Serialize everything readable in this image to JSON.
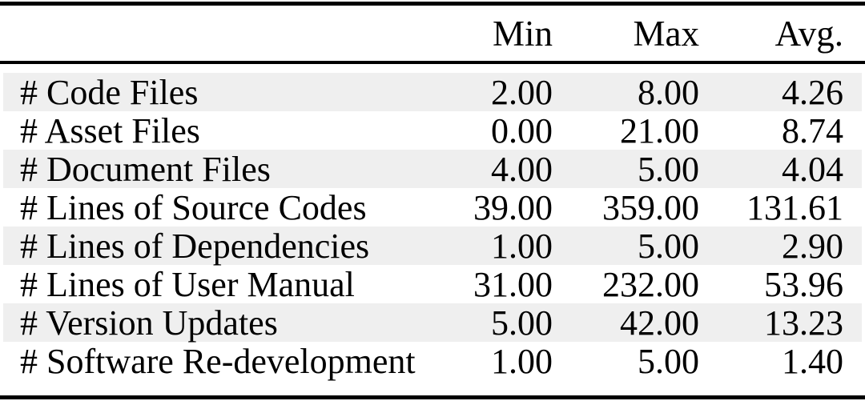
{
  "table": {
    "header": {
      "label": "",
      "min": "Min",
      "max": "Max",
      "avg": "Avg."
    },
    "rows": [
      {
        "label": "# Code Files",
        "min": "2.00",
        "max": "8.00",
        "avg": "4.26"
      },
      {
        "label": "# Asset Files",
        "min": "0.00",
        "max": "21.00",
        "avg": "8.74"
      },
      {
        "label": "# Document Files",
        "min": "4.00",
        "max": "5.00",
        "avg": "4.04"
      },
      {
        "label": "# Lines of Source Codes",
        "min": "39.00",
        "max": "359.00",
        "avg": "131.61"
      },
      {
        "label": "# Lines of Dependencies",
        "min": "1.00",
        "max": "5.00",
        "avg": "2.90"
      },
      {
        "label": "# Lines of User Manual",
        "min": "31.00",
        "max": "232.00",
        "avg": "53.96"
      },
      {
        "label": "# Version Updates",
        "min": "5.00",
        "max": "42.00",
        "avg": "13.23"
      },
      {
        "label": "# Software Re-development",
        "min": "1.00",
        "max": "5.00",
        "avg": "1.40"
      }
    ],
    "colors": {
      "row_shade": "#efefef",
      "rule": "#000000",
      "text": "#000000",
      "background": "#ffffff"
    }
  }
}
